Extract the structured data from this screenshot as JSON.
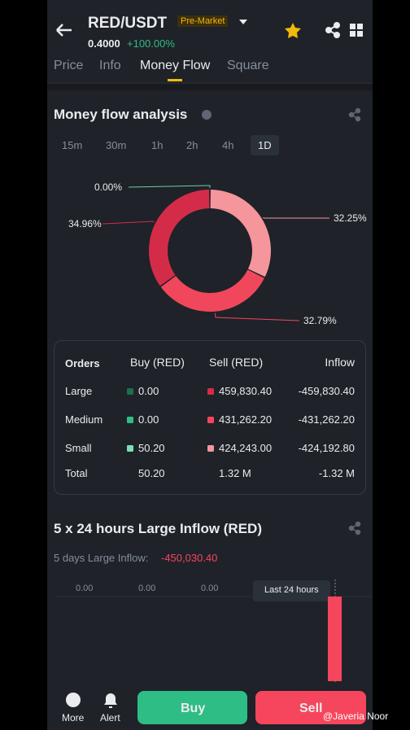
{
  "header": {
    "pair": "RED/USDT",
    "badge": "Pre-Market",
    "price": "0.4000",
    "change": "+100.00%"
  },
  "tabs": [
    "Price",
    "Info",
    "Money Flow",
    "Square"
  ],
  "active_tab": 2,
  "analysis": {
    "title": "Money flow analysis",
    "intervals": [
      "15m",
      "30m",
      "1h",
      "2h",
      "4h",
      "1D"
    ],
    "active_interval": 5,
    "donut": {
      "segments": [
        {
          "value": 32.25,
          "label": "32.25%",
          "color": "#f5959c"
        },
        {
          "value": 32.79,
          "label": "32.79%",
          "color": "#f0475c"
        },
        {
          "value": 34.96,
          "label": "34.96%",
          "color": "#d42c48"
        },
        {
          "value": 0.0,
          "label": "0.00%",
          "color": "#6ecfa6"
        }
      ]
    }
  },
  "table": {
    "header": [
      "Orders",
      "Buy (RED)",
      "Sell (RED)",
      "Inflow"
    ],
    "rows": [
      [
        "Large",
        "0.00",
        "459,830.40",
        "-459,830.40"
      ],
      [
        "Medium",
        "0.00",
        "431,262.20",
        "-431,262.20"
      ],
      [
        "Small",
        "50.20",
        "424,243.00",
        "-424,192.80"
      ],
      [
        "Total",
        "50.20",
        "1.32 M",
        "-1.32 M"
      ]
    ],
    "buy_colors": [
      "#1e6e4f",
      "#2ebd85",
      "#7fdcb6"
    ],
    "sell_colors": [
      "#d42c48",
      "#f0475c",
      "#f5959c"
    ]
  },
  "inflow": {
    "title": "5 x 24 hours Large Inflow (RED)",
    "summary_label": "5 days Large Inflow:",
    "summary_value": "-450,030.40",
    "bar_labels": [
      "0.00",
      "0.00",
      "0.00"
    ],
    "tooltip": "Last 24 hours",
    "last_bar": -450030.4
  },
  "footer": {
    "more": "More",
    "alert": "Alert",
    "buy": "Buy",
    "sell": "Sell",
    "watermark": "@Javeria Noor"
  }
}
